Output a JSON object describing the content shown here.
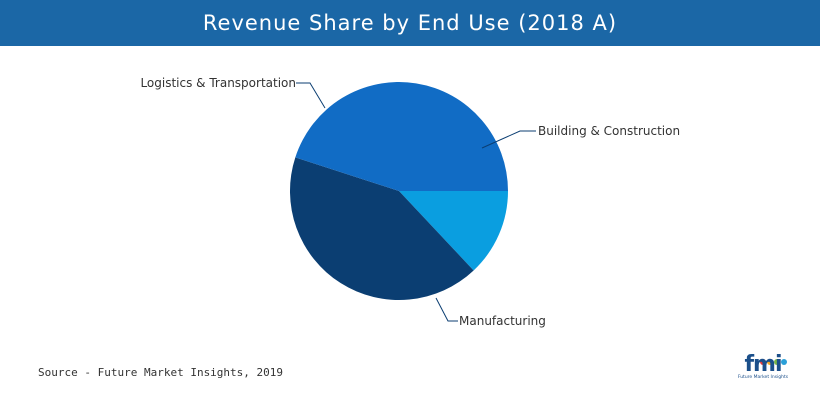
{
  "header": {
    "title": "Revenue Share by End Use (2018 A)"
  },
  "colors": {
    "header_bg": "#1b67a6",
    "building": "#0a9ee0",
    "logistics": "#116cc5",
    "manufacturing": "#0b3e72",
    "leader": "#0b3e72"
  },
  "chart_data": {
    "type": "pie",
    "title": "Revenue Share by End Use (2018 A)",
    "slices": [
      {
        "label": "Building & Construction",
        "value": 13
      },
      {
        "label": "Manufacturing",
        "value": 42
      },
      {
        "label": "Logistics & Transportation",
        "value": 45
      }
    ],
    "start": "3 o'clock, clockwise"
  },
  "footer": {
    "source": "Source - Future Market Insights, 2019",
    "logo_text": "fmi",
    "logo_sub": "Future Market Insights",
    "logo_dot_colors": [
      "#e23b3b",
      "#f5a623",
      "#7ab648",
      "#2a9fd8",
      "#8e44ad"
    ]
  }
}
